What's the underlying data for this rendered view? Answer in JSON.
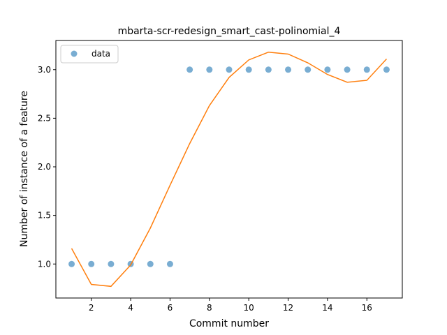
{
  "chart_data": {
    "type": "scatter",
    "title": "mbarta-scr-redesign_smart_cast-polinomial_4",
    "xlabel": "Commit number",
    "ylabel": "Number of instance of a feature",
    "xlim": [
      0.2,
      17.8
    ],
    "ylim": [
      0.65,
      3.3
    ],
    "xticks": [
      2,
      4,
      6,
      8,
      10,
      12,
      14,
      16
    ],
    "xtick_labels": [
      "2",
      "4",
      "6",
      "8",
      "10",
      "12",
      "14",
      "16"
    ],
    "yticks": [
      1.0,
      1.5,
      2.0,
      2.5,
      3.0
    ],
    "ytick_labels": [
      "1.0",
      "1.5",
      "2.0",
      "2.5",
      "3.0"
    ],
    "grid": false,
    "legend_position": "top-left",
    "series": [
      {
        "name": "data",
        "kind": "scatter",
        "color": "#1f77b4",
        "x": [
          1,
          2,
          3,
          4,
          5,
          6,
          7,
          8,
          9,
          10,
          11,
          12,
          13,
          14,
          15,
          16,
          17
        ],
        "y": [
          1,
          1,
          1,
          1,
          1,
          1,
          3,
          3,
          3,
          3,
          3,
          3,
          3,
          3,
          3,
          3,
          3
        ]
      },
      {
        "kind": "line",
        "color": "#ff7f0e",
        "x": [
          1,
          2,
          3,
          4,
          5,
          6,
          7,
          8,
          9,
          10,
          11,
          12,
          13,
          14,
          15,
          16,
          17
        ],
        "y": [
          1.16,
          0.79,
          0.77,
          0.99,
          1.37,
          1.81,
          2.24,
          2.63,
          2.92,
          3.1,
          3.18,
          3.16,
          3.07,
          2.95,
          2.87,
          2.89,
          3.11
        ]
      }
    ]
  }
}
